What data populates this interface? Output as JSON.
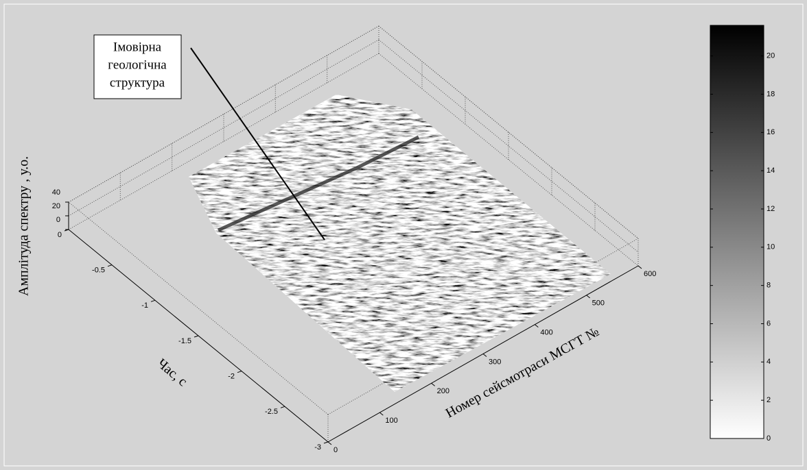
{
  "chart_data": {
    "type": "surface3d",
    "colormap": "gray",
    "annotation": [
      "Імовірна",
      "геологічна",
      "структура"
    ],
    "xlabel": "Номер сейсмотраси МСГТ №",
    "ylabel": "Час, с",
    "zlabel": "Амплітуда спектру , у.о.",
    "xlim": [
      0,
      600
    ],
    "xticks": [
      0,
      100,
      200,
      300,
      400,
      500,
      600
    ],
    "ylim": [
      -3,
      0
    ],
    "yticks": [
      -3,
      -2.5,
      -2,
      -1.5,
      -1,
      -0.5,
      0
    ],
    "zlim": [
      0,
      40
    ],
    "zticks": [
      0,
      20,
      40
    ],
    "grid": true,
    "colorbar": {
      "lim": [
        0,
        21.6
      ],
      "ticks": [
        0,
        2,
        4,
        6,
        8,
        10,
        12,
        14,
        16,
        18,
        20
      ]
    }
  }
}
